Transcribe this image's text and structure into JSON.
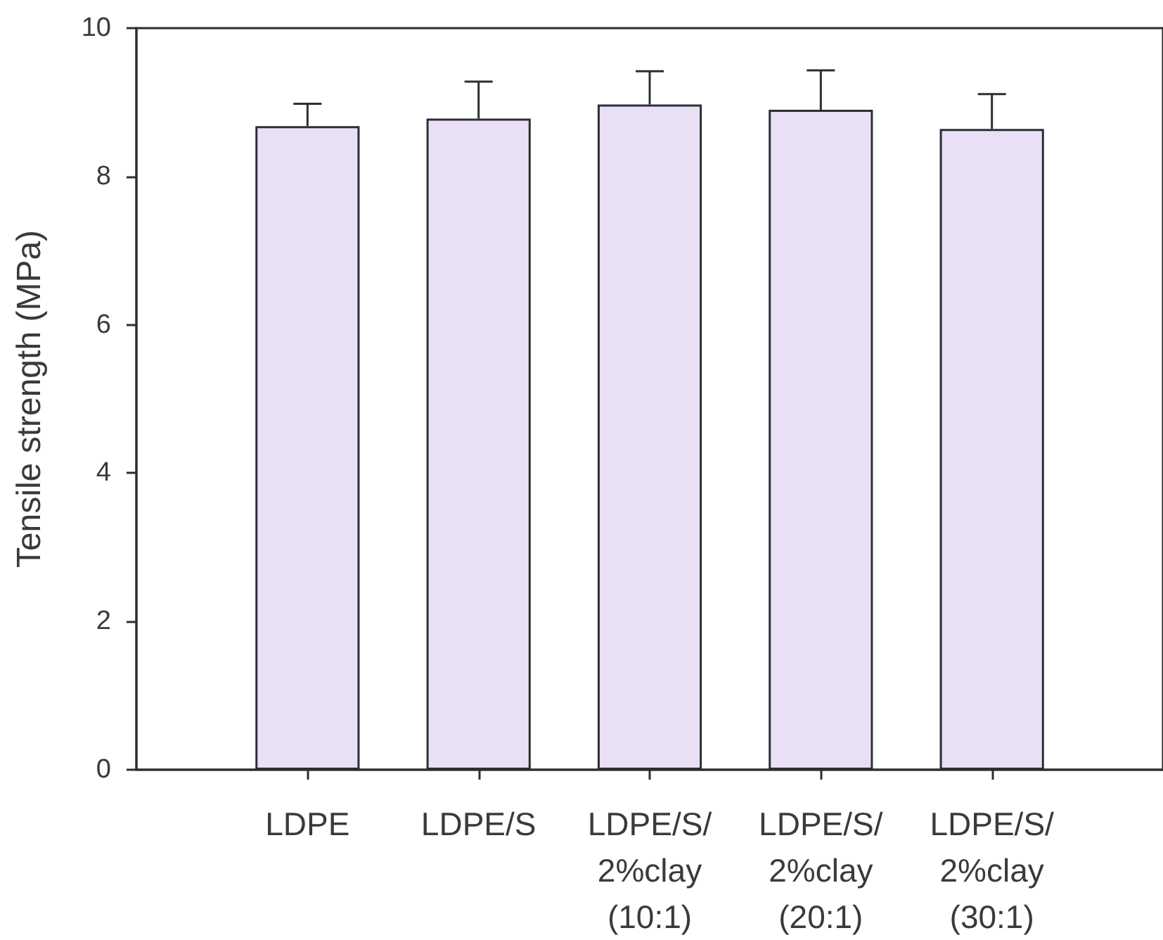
{
  "chart_data": {
    "type": "bar",
    "ylabel": "Tensile strength (MPa)",
    "categories": [
      "LDPE",
      "LDPE/S",
      "LDPE/S/\n2%clay\n(10:1)",
      "LDPE/S/\n2%clay\n(20:1)",
      "LDPE/S/\n2%clay\n(30:1)"
    ],
    "values": [
      8.68,
      8.78,
      8.97,
      8.9,
      8.64
    ],
    "errors": [
      [
        8.68,
        8.98
      ],
      [
        8.78,
        9.28
      ],
      [
        8.97,
        9.42
      ],
      [
        8.9,
        9.43
      ],
      [
        8.64,
        9.11
      ]
    ],
    "color": "#eae0f5",
    "ylim": [
      0,
      10
    ],
    "yticks": [
      0,
      2,
      4,
      6,
      8,
      10
    ]
  }
}
